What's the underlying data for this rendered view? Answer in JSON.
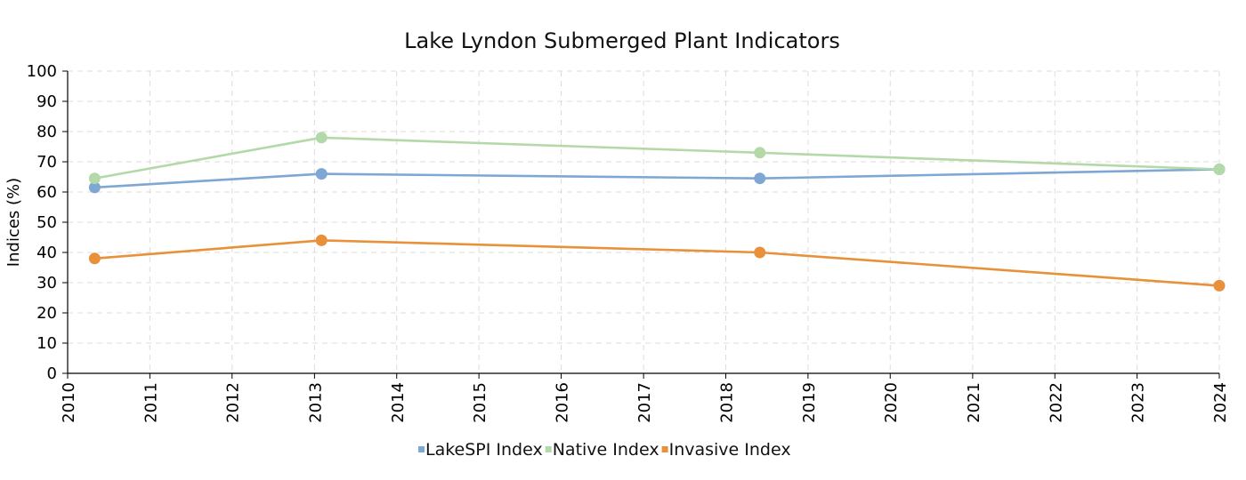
{
  "chart_data": {
    "type": "line",
    "title": "Lake Lyndon Submerged Plant Indicators",
    "xlabel": "",
    "ylabel": "Indices (%)",
    "xlim": [
      "2010-01-01",
      "2024-01-01"
    ],
    "ylim": [
      0,
      100
    ],
    "x_ticks": [
      "2010",
      "2011",
      "2012",
      "2013",
      "2014",
      "2015",
      "2016",
      "2017",
      "2018",
      "2019",
      "2020",
      "2021",
      "2022",
      "2023",
      "2024"
    ],
    "y_ticks": [
      0,
      10,
      20,
      30,
      40,
      50,
      60,
      70,
      80,
      90,
      100
    ],
    "grid": true,
    "legend_position": "bottom-center",
    "series": [
      {
        "name": "LakeSPI Index",
        "color": "#7ea7d4",
        "x": [
          "2010-05-01",
          "2013-02-01",
          "2018-06-01",
          "2024-01-01"
        ],
        "y": [
          61.5,
          66,
          64.5,
          67.5
        ]
      },
      {
        "name": "Native Index",
        "color": "#b3d9a8",
        "x": [
          "2010-05-01",
          "2013-02-01",
          "2018-06-01",
          "2024-01-01"
        ],
        "y": [
          64.5,
          78,
          73,
          67.5
        ]
      },
      {
        "name": "Invasive Index",
        "color": "#e8913a",
        "x": [
          "2010-05-01",
          "2013-02-01",
          "2018-06-01",
          "2024-01-01"
        ],
        "y": [
          38,
          44,
          40,
          29
        ]
      }
    ]
  }
}
